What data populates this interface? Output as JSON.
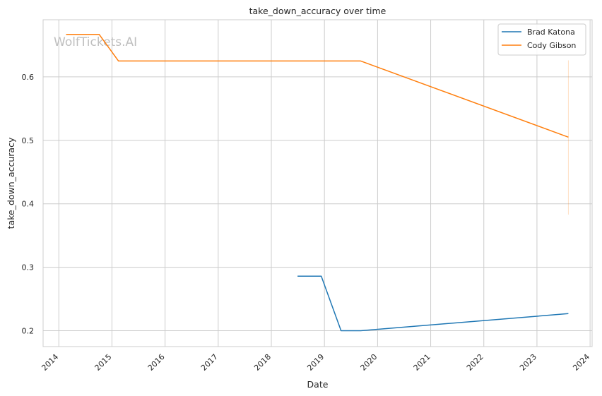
{
  "watermark": "WolfTickets.AI",
  "chart_data": {
    "type": "line",
    "title": "take_down_accuracy over time",
    "xlabel": "Date",
    "ylabel": "take_down_accuracy",
    "x_ticks": [
      "2014",
      "2015",
      "2016",
      "2017",
      "2018",
      "2019",
      "2020",
      "2021",
      "2022",
      "2023",
      "2024"
    ],
    "y_ticks": [
      "0.2",
      "0.3",
      "0.4",
      "0.5",
      "0.6"
    ],
    "xlim": [
      "2013-09-15",
      "2024-01-15"
    ],
    "ylim": [
      0.175,
      0.69
    ],
    "grid": true,
    "legend_position": "top-right",
    "series": [
      {
        "name": "Brad Katona",
        "color": "#1f77b4",
        "points": [
          {
            "x": "2018-06-30",
            "y": 0.286
          },
          {
            "x": "2018-12-10",
            "y": 0.286
          },
          {
            "x": "2019-04-25",
            "y": 0.2
          },
          {
            "x": "2019-09-07",
            "y": 0.2
          },
          {
            "x": "2023-08-05",
            "y": 0.227
          }
        ]
      },
      {
        "name": "Cody Gibson",
        "color": "#ff7f0e",
        "points": [
          {
            "x": "2014-02-20",
            "y": 0.667
          },
          {
            "x": "2014-10-05",
            "y": 0.667
          },
          {
            "x": "2015-02-15",
            "y": 0.625
          },
          {
            "x": "2019-09-07",
            "y": 0.625
          },
          {
            "x": "2023-08-05",
            "y": 0.505
          }
        ],
        "error_band": {
          "x": "2023-08-05",
          "low": 0.383,
          "high": 0.626
        }
      }
    ]
  }
}
